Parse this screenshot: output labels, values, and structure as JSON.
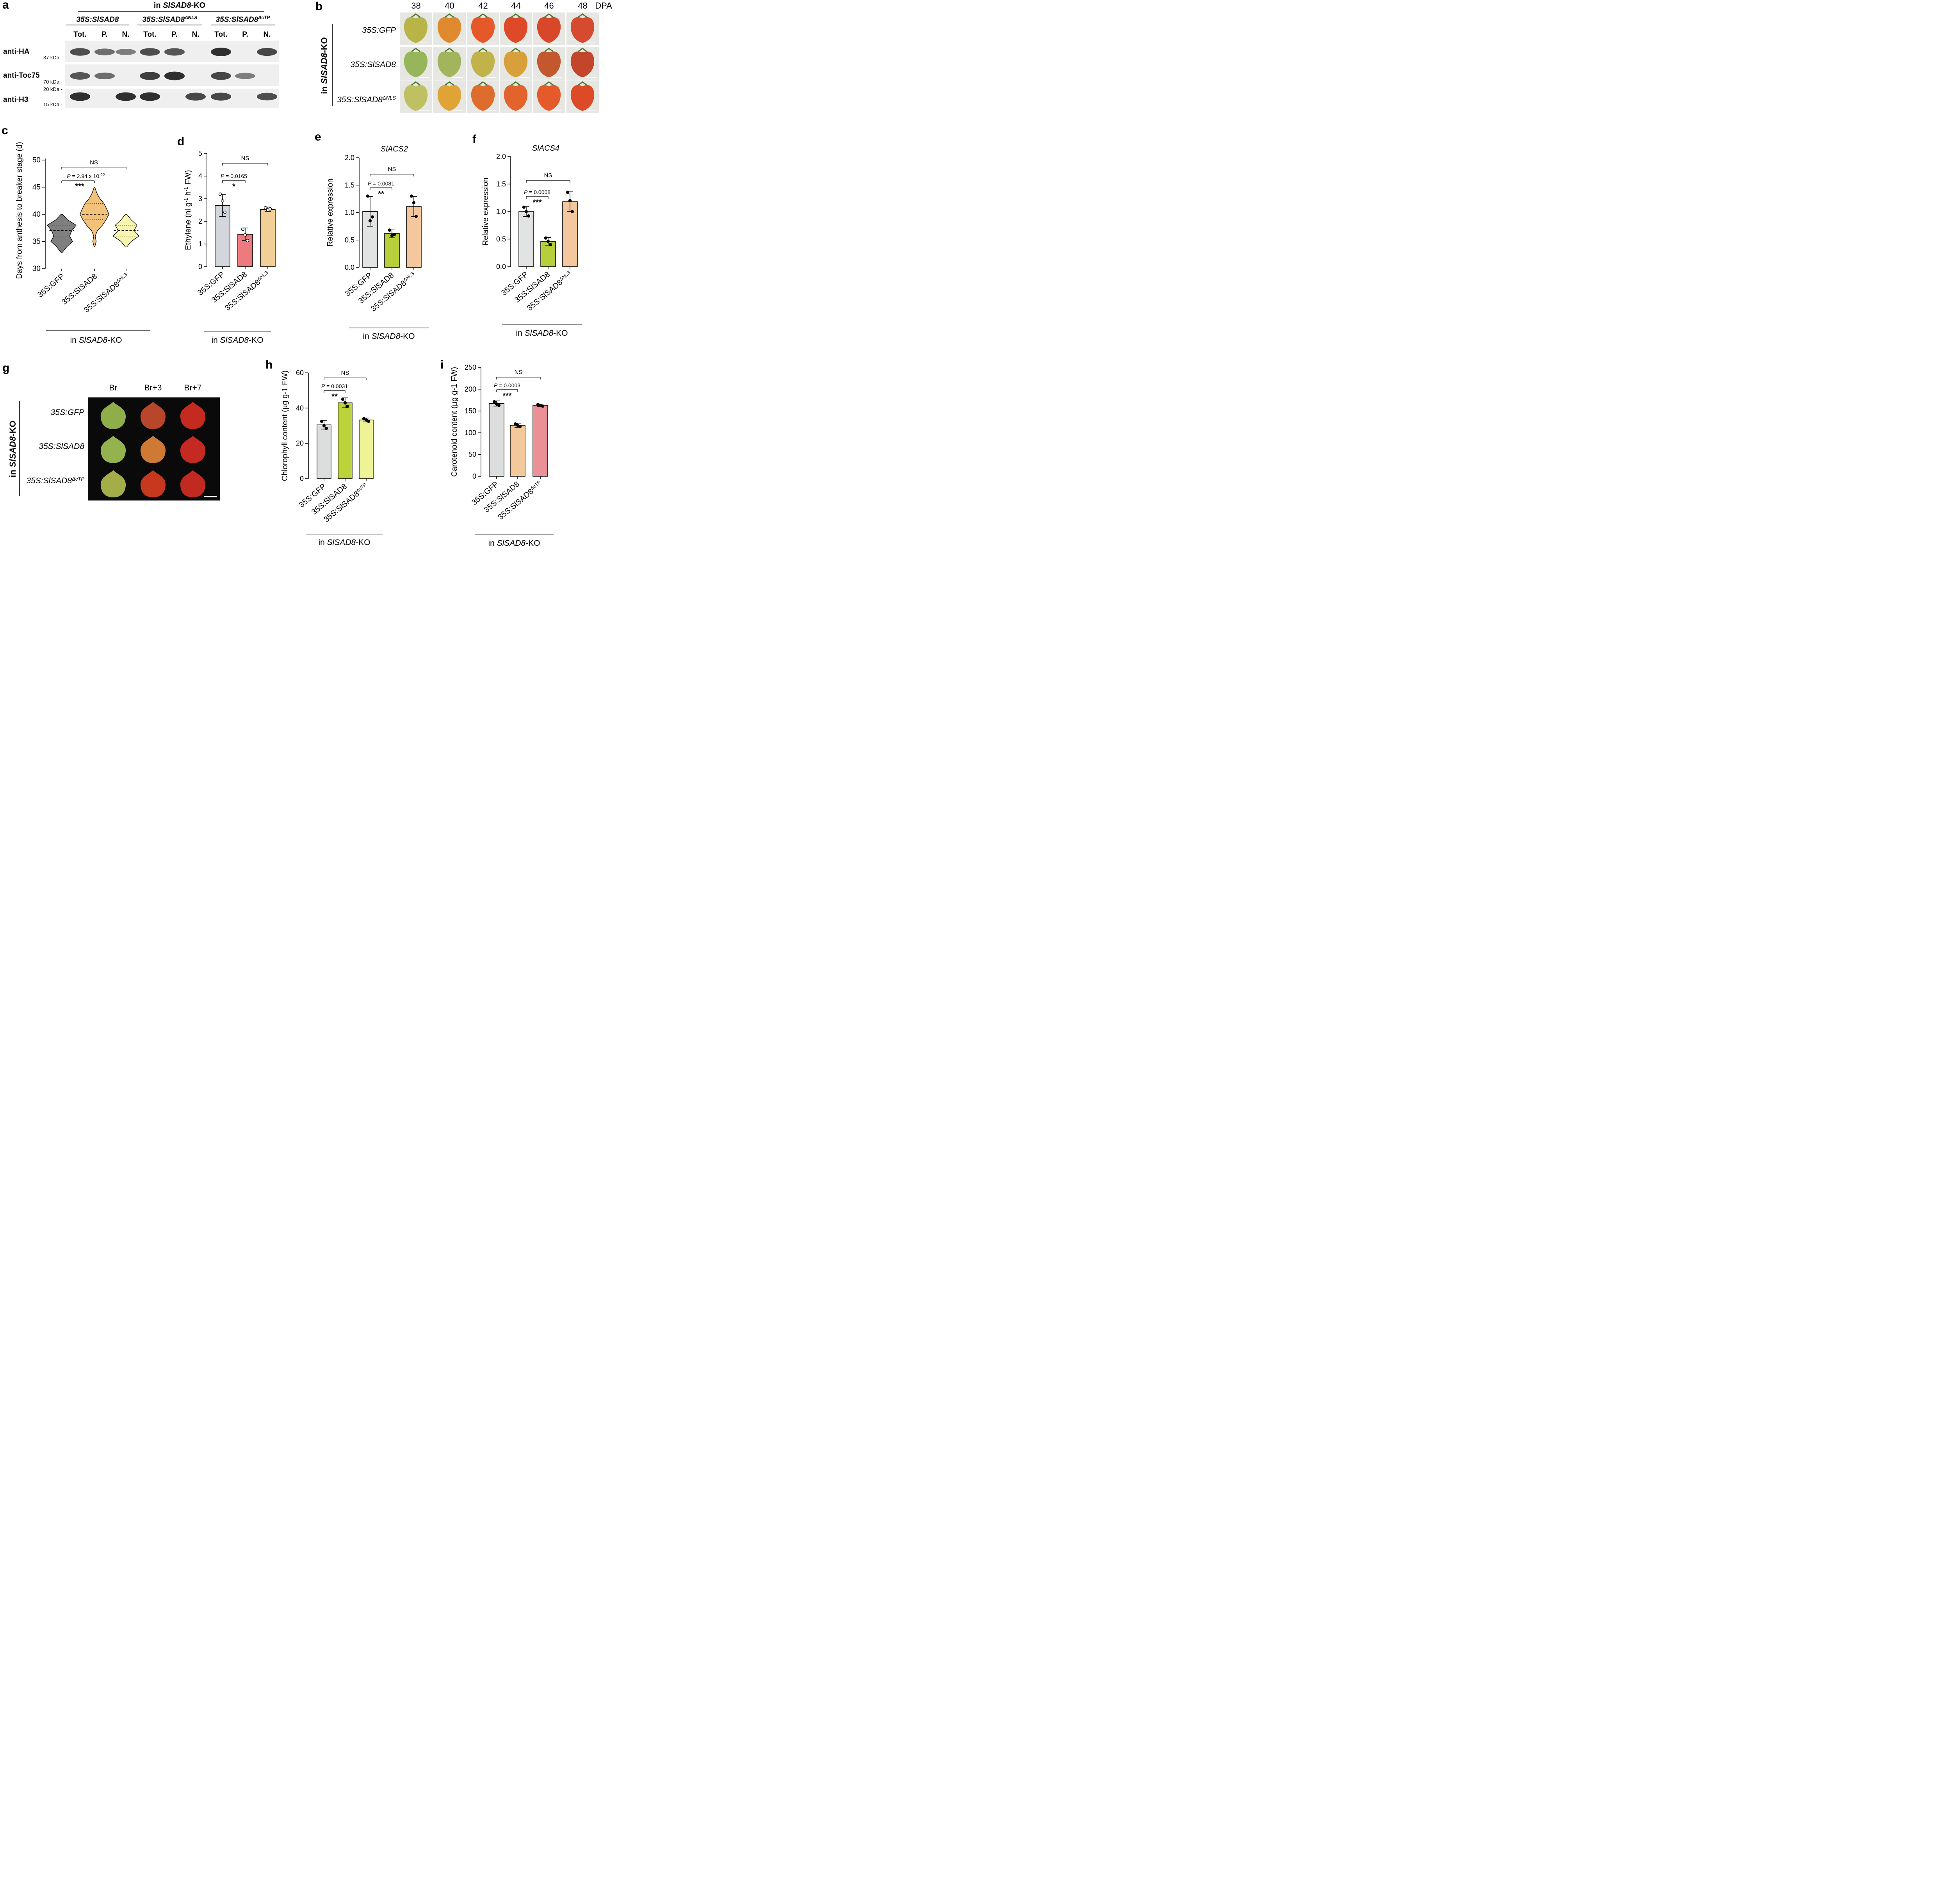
{
  "panels": {
    "a": {
      "letter": "a",
      "header": "in SlSAD8-KO",
      "groups": [
        {
          "base": "35S:SlSAD8",
          "sup": ""
        },
        {
          "base": "35S:SlSAD8",
          "sup": "ΔNLS"
        },
        {
          "base": "35S:SlSAD8",
          "sup": "ΔcTP"
        }
      ],
      "fractions": [
        "Tot.",
        "P.",
        "N.",
        "Tot.",
        "P.",
        "N.",
        "Tot.",
        "P.",
        "N."
      ],
      "blots": [
        {
          "label": "anti-HA",
          "markers": [
            "37 kDa"
          ],
          "bands": [
            0.8,
            0.6,
            0.5,
            0.8,
            0.75,
            0,
            1,
            0,
            0.85
          ]
        },
        {
          "label": "anti-Toc75",
          "markers": [
            "70 kDa"
          ],
          "bands": [
            0.75,
            0.6,
            0,
            0.9,
            1,
            0,
            0.85,
            0.5,
            0
          ]
        },
        {
          "label": "anti-H3",
          "markers": [
            "20 kDa",
            "15 kDa"
          ],
          "bands": [
            1,
            0,
            1,
            1,
            0,
            0.85,
            0.85,
            0,
            0.8
          ]
        }
      ]
    },
    "b": {
      "letter": "b",
      "side_label": "in SlSAD8-KO",
      "days": [
        "38",
        "40",
        "42",
        "44",
        "46",
        "48"
      ],
      "unit": "DPA",
      "rows": [
        {
          "base": "35S:GFP",
          "sup": "",
          "colors": [
            "#b9b448",
            "#e08a30",
            "#e4582a",
            "#de4a28",
            "#d9472a",
            "#d64a30"
          ]
        },
        {
          "base": "35S:SlSAD8",
          "sup": "",
          "colors": [
            "#97b65c",
            "#a3b55c",
            "#c2b24a",
            "#d8a03a",
            "#c3582e",
            "#c2452c"
          ]
        },
        {
          "base": "35S:SlSAD8",
          "sup": "ΔNLS",
          "colors": [
            "#bfc062",
            "#e0a336",
            "#de6c2c",
            "#e2642c",
            "#e45a2a",
            "#dc4a28"
          ]
        }
      ]
    },
    "c": {
      "letter": "c",
      "ylabel": "Days from anthesis to breaker stage (d)",
      "ticks": [
        "30",
        "35",
        "40",
        "45",
        "50"
      ],
      "xlabels": [
        {
          "base": "35S:GFP",
          "sup": ""
        },
        {
          "base": "35S:SlSAD8",
          "sup": ""
        },
        {
          "base": "35S:SlSAD8",
          "sup": "ΔNLS"
        }
      ],
      "group_label": {
        "italic": "SlSAD8",
        "pre": "in ",
        "post": "-KO"
      },
      "ns": "NS",
      "sig": {
        "p_text": "P = 2.94 x 10",
        "exp": "-22",
        "stars": "***"
      }
    },
    "d": {
      "letter": "d",
      "ylabel_pre": "Ethylene (nl g",
      "ylabel_mid": " h",
      "ylabel_post": " FW)",
      "ylabel_sup": "-1",
      "ticks": [
        "0",
        "1",
        "2",
        "3",
        "4",
        "5"
      ],
      "xlabels": [
        {
          "base": "35S:GFP",
          "sup": ""
        },
        {
          "base": "35S:SlSAD8",
          "sup": ""
        },
        {
          "base": "35S:SlSAD8",
          "sup": "ΔNLS"
        }
      ],
      "group_label": {
        "italic": "SlSAD8",
        "pre": "in ",
        "post": "-KO"
      },
      "ns": "NS",
      "sig": {
        "p_text": "P = 0.0165",
        "stars": "*"
      }
    },
    "e": {
      "letter": "e",
      "title": "SlACS2",
      "ylabel": "Relative  expression",
      "ticks": [
        "0.0",
        "0.5",
        "1.0",
        "1.5",
        "2.0"
      ],
      "xlabels": [
        {
          "base": "35S:GFP",
          "sup": ""
        },
        {
          "base": "35S:SlSAD8",
          "sup": ""
        },
        {
          "base": "35S:SlSAD8",
          "sup": "ΔNLS"
        }
      ],
      "group_label": {
        "italic": "SlSAD8",
        "pre": "in ",
        "post": "-KO"
      },
      "ns": "NS",
      "sig": {
        "p_text": "P = 0.0081",
        "stars": "**"
      }
    },
    "f": {
      "letter": "f",
      "title": "SlACS4",
      "ylabel": "Relative  expression",
      "ticks": [
        "0.0",
        "0.5",
        "1.0",
        "1.5",
        "2.0"
      ],
      "xlabels": [
        {
          "base": "35S:GFP",
          "sup": ""
        },
        {
          "base": "35S:SlSAD8",
          "sup": ""
        },
        {
          "base": "35S:SlSAD8",
          "sup": "ΔNLS"
        }
      ],
      "group_label": {
        "italic": "SlSAD8",
        "pre": "in ",
        "post": "-KO"
      },
      "ns": "NS",
      "sig": {
        "p_text": "P = 0.0008",
        "stars": "***"
      }
    },
    "g": {
      "letter": "g",
      "side_label": "in SlSAD8-KO",
      "cols": [
        "Br",
        "Br+3",
        "Br+7"
      ],
      "rows": [
        {
          "base": "35S:GFP",
          "sup": "",
          "colors": [
            "#8fae4a",
            "#b8462a",
            "#c42a1e"
          ]
        },
        {
          "base": "35S:SlSAD8",
          "sup": "",
          "colors": [
            "#94b24e",
            "#cf7a34",
            "#c42a22"
          ]
        },
        {
          "base": "35S:SlSAD8",
          "sup": "ΔcTP",
          "colors": [
            "#a4ae48",
            "#c8381e",
            "#c02a20"
          ]
        }
      ]
    },
    "h": {
      "letter": "h",
      "ylabel": "Chlorophyll content (µg g-1 FW)",
      "ticks": [
        "0",
        "20",
        "40",
        "60"
      ],
      "xlabels": [
        {
          "base": "35S:GFP",
          "sup": ""
        },
        {
          "base": "35S:SlSAD8",
          "sup": ""
        },
        {
          "base": "35S:SlSAD8",
          "sup": "ΔcTP"
        }
      ],
      "group_label": {
        "italic": "SlSAD8",
        "pre": "in ",
        "post": "-KO"
      },
      "ns": "NS",
      "sig": {
        "p_text": "P = 0.0031",
        "stars": "**"
      }
    },
    "i": {
      "letter": "i",
      "ylabel": "Carotenoid content (µg g-1 FW)",
      "ticks": [
        "0",
        "50",
        "100",
        "150",
        "200",
        "250"
      ],
      "xlabels": [
        {
          "base": "35S:GFP",
          "sup": ""
        },
        {
          "base": "35S:SlSAD8",
          "sup": ""
        },
        {
          "base": "35S:SlSAD8",
          "sup": "ΔcTP"
        }
      ],
      "group_label": {
        "italic": "SlSAD8",
        "pre": "in ",
        "post": "-KO"
      },
      "ns": "NS",
      "sig": {
        "p_text": "P = 0.0003",
        "stars": "***"
      }
    }
  },
  "chart_data": [
    {
      "id": "c",
      "type": "violin",
      "categories": [
        "35S:GFP",
        "35S:SlSAD8",
        "35S:SlSAD8ΔNLS"
      ],
      "ylim": [
        30,
        50
      ],
      "colors": [
        "#7f7f7f",
        "#f3c27a",
        "#f7f4ad"
      ],
      "series": [
        {
          "median": 37,
          "q1": 36,
          "q3": 38,
          "min": 33,
          "max": 40,
          "profile": [
            [
              33,
              0.05
            ],
            [
              34,
              0.35
            ],
            [
              35,
              0.75
            ],
            [
              36,
              0.55
            ],
            [
              37,
              0.7
            ],
            [
              38,
              1.0
            ],
            [
              39,
              0.4
            ],
            [
              40,
              0.05
            ]
          ]
        },
        {
          "median": 40,
          "q1": 39,
          "q3": 42,
          "min": 34,
          "max": 45,
          "profile": [
            [
              34,
              0.02
            ],
            [
              35,
              0.12
            ],
            [
              36,
              0.05
            ],
            [
              37,
              0.2
            ],
            [
              38,
              0.55
            ],
            [
              39,
              0.8
            ],
            [
              40,
              1.0
            ],
            [
              41,
              0.85
            ],
            [
              42,
              0.65
            ],
            [
              43,
              0.35
            ],
            [
              44,
              0.15
            ],
            [
              45,
              0.02
            ]
          ]
        },
        {
          "median": 37,
          "q1": 36,
          "q3": 38,
          "min": 34,
          "max": 40,
          "profile": [
            [
              34,
              0.05
            ],
            [
              35,
              0.35
            ],
            [
              36,
              0.9
            ],
            [
              37,
              0.55
            ],
            [
              38,
              0.75
            ],
            [
              39,
              0.35
            ],
            [
              40,
              0.05
            ]
          ]
        }
      ]
    },
    {
      "id": "d",
      "type": "bar",
      "categories": [
        "35S:GFP",
        "35S:SlSAD8",
        "35S:SlSAD8ΔNLS"
      ],
      "values": [
        2.7,
        1.43,
        2.53
      ],
      "errors": [
        0.48,
        0.28,
        0.1
      ],
      "points": [
        [
          3.2,
          2.9,
          2.4
        ],
        [
          1.65,
          1.4,
          1.15
        ],
        [
          2.6,
          2.5,
          2.55
        ]
      ],
      "open_points": true,
      "ylim": [
        0,
        5
      ],
      "colors": [
        "#d3d6dc",
        "#ec7a7e",
        "#f2cf96"
      ]
    },
    {
      "id": "e",
      "type": "bar",
      "categories": [
        "35S:GFP",
        "35S:SlSAD8",
        "35S:SlSAD8ΔNLS"
      ],
      "values": [
        1.02,
        0.62,
        1.11
      ],
      "errors": [
        0.27,
        0.08,
        0.18
      ],
      "points": [
        [
          1.3,
          0.85,
          0.92
        ],
        [
          0.68,
          0.58,
          0.6
        ],
        [
          1.3,
          1.18,
          0.93
        ]
      ],
      "ylim": [
        0,
        2
      ],
      "colors": [
        "#e2e3e3",
        "#b6cf3a",
        "#f4c79f"
      ]
    },
    {
      "id": "f",
      "type": "bar",
      "categories": [
        "35S:GFP",
        "35S:SlSAD8",
        "35S:SlSAD8ΔNLS"
      ],
      "values": [
        1.0,
        0.46,
        1.18
      ],
      "errors": [
        0.09,
        0.07,
        0.18
      ],
      "points": [
        [
          1.08,
          1.0,
          0.92
        ],
        [
          0.52,
          0.46,
          0.4
        ],
        [
          1.35,
          1.2,
          1.0
        ]
      ],
      "ylim": [
        0,
        2
      ],
      "colors": [
        "#e2e3e3",
        "#b6cf3a",
        "#f4c79f"
      ]
    },
    {
      "id": "h",
      "type": "bar",
      "categories": [
        "35S:GFP",
        "35S:SlSAD8",
        "35S:SlSAD8ΔcTP"
      ],
      "values": [
        30.5,
        43,
        33.3
      ],
      "errors": [
        2.4,
        2.8,
        1.1
      ],
      "points": [
        [
          32.5,
          30,
          28.5
        ],
        [
          45,
          43,
          41
        ],
        [
          34,
          33.3,
          32.5
        ]
      ],
      "ylim": [
        0,
        60
      ],
      "colors": [
        "#dcdddd",
        "#bcd33c",
        "#eef495"
      ]
    },
    {
      "id": "i",
      "type": "bar",
      "categories": [
        "35S:GFP",
        "35S:SlSAD8",
        "35S:SlSAD8ΔcTP"
      ],
      "values": [
        167,
        117,
        163
      ],
      "errors": [
        6,
        5,
        3
      ],
      "points": [
        [
          171,
          166,
          163
        ],
        [
          120,
          117,
          114
        ],
        [
          165,
          163,
          161
        ]
      ],
      "ylim": [
        0,
        250
      ],
      "colors": [
        "#dcdddd",
        "#f3c89b",
        "#eb9097"
      ]
    }
  ]
}
